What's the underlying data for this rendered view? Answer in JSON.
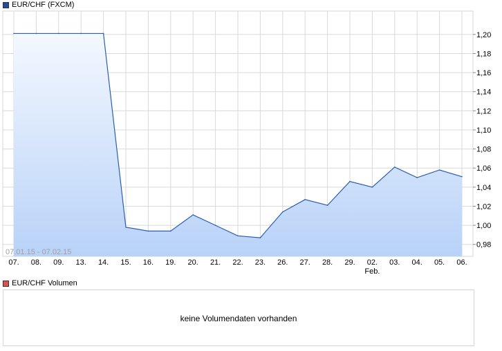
{
  "main_legend": {
    "label": "EUR/CHF (FXCM)",
    "color": "#1f4e9c"
  },
  "volume_legend": {
    "label": "EUR/CHF Volumen",
    "color": "#d9534f"
  },
  "volume_panel": {
    "message": "keine Volumendaten vorhanden"
  },
  "range_label": "07.01.15 - 07.02.15",
  "colors": {
    "line": "#2a5db0",
    "fill_top": "#f4f8ff",
    "fill_bottom": "#b8d2f8",
    "grid": "#d9d9d9"
  },
  "chart_data": {
    "type": "area",
    "title": "EUR/CHF (FXCM)",
    "xlabel": "",
    "ylabel": "",
    "x": [
      "07.",
      "08.",
      "09.",
      "13.",
      "14.",
      "15.",
      "16.",
      "19.",
      "20.",
      "21.",
      "22.",
      "23.",
      "26.",
      "27.",
      "28.",
      "29.",
      "02.",
      "03.",
      "04.",
      "05.",
      "06."
    ],
    "x_sublabels": {
      "16": "Feb."
    },
    "series": [
      {
        "values": [
          1.201,
          1.201,
          1.201,
          1.201,
          1.201,
          0.998,
          0.994,
          0.994,
          1.011,
          1.0,
          0.989,
          0.987,
          1.014,
          1.027,
          1.021,
          1.046,
          1.04,
          1.061,
          1.05,
          1.058,
          1.051
        ]
      }
    ],
    "yticks": [
      "0,98",
      "1,00",
      "1,02",
      "1,04",
      "1,06",
      "1,08",
      "1,10",
      "1,12",
      "1,14",
      "1,16",
      "1,18",
      "1,20"
    ],
    "ylim": [
      0.9675,
      1.2245
    ],
    "grid": true,
    "y_axis_side": "right"
  }
}
